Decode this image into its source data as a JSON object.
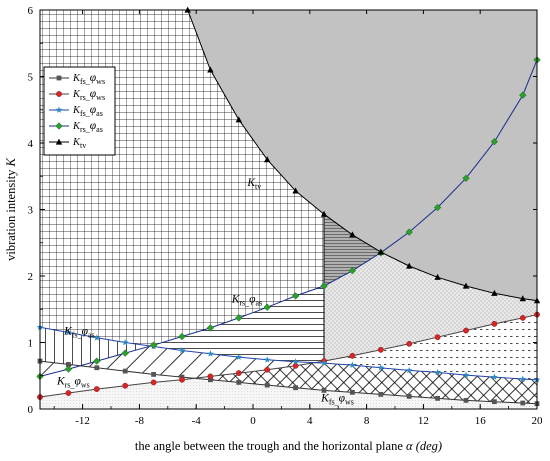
{
  "chart_data": {
    "type": "line",
    "title": "",
    "xlabel": "the angle between the trough and the horizontal plane",
    "xlabel_symbol": "α (deg)",
    "ylabel": "vibration intensity",
    "ylabel_symbol": "K",
    "xlim": [
      -15,
      20
    ],
    "ylim": [
      0,
      6
    ],
    "x_ticks": [
      -12,
      -8,
      -4,
      0,
      4,
      8,
      12,
      16,
      20
    ],
    "y_ticks": [
      0,
      1,
      2,
      3,
      4,
      5,
      6
    ],
    "legend_position": "top-left",
    "series": [
      {
        "name": "K_fs_φws",
        "label_main": "K",
        "label_sub": "fs",
        "label_phi": "φ",
        "label_phisub": "ws",
        "color": "#555555",
        "marker": "square",
        "x": [
          -15,
          -13,
          -11,
          -9,
          -7,
          -5,
          -3,
          -1,
          1,
          3,
          5,
          7,
          9,
          11,
          13,
          15,
          17,
          19,
          20
        ],
        "y": [
          0.72,
          0.67,
          0.62,
          0.57,
          0.52,
          0.48,
          0.44,
          0.4,
          0.36,
          0.32,
          0.28,
          0.25,
          0.22,
          0.19,
          0.16,
          0.13,
          0.11,
          0.09,
          0.08
        ]
      },
      {
        "name": "K_rs_φws",
        "label_main": "K",
        "label_sub": "rs",
        "label_phi": "φ",
        "label_phisub": "ws",
        "color": "#d62728",
        "marker": "circle",
        "x": [
          -15,
          -13,
          -11,
          -9,
          -7,
          -5,
          -3,
          -1,
          1,
          3,
          5,
          7,
          9,
          11,
          13,
          15,
          17,
          19,
          20
        ],
        "y": [
          0.18,
          0.24,
          0.3,
          0.35,
          0.4,
          0.44,
          0.49,
          0.54,
          0.59,
          0.65,
          0.72,
          0.8,
          0.89,
          0.98,
          1.08,
          1.18,
          1.28,
          1.37,
          1.42
        ]
      },
      {
        "name": "K_fs_φas",
        "label_main": "K",
        "label_sub": "fs",
        "label_phi": "φ",
        "label_phisub": "as",
        "color": "#2b8cc4",
        "marker": "star",
        "x": [
          -15,
          -13,
          -11,
          -9,
          -7,
          -5,
          -3,
          -1,
          1,
          3,
          5,
          7,
          9,
          11,
          13,
          15,
          17,
          19,
          20
        ],
        "y": [
          1.23,
          1.15,
          1.07,
          1.0,
          0.94,
          0.88,
          0.83,
          0.78,
          0.74,
          0.71,
          0.69,
          0.66,
          0.62,
          0.58,
          0.55,
          0.51,
          0.48,
          0.45,
          0.44
        ]
      },
      {
        "name": "K_rs_φas",
        "label_main": "K",
        "label_sub": "rs",
        "label_phi": "φ",
        "label_phisub": "as",
        "color": "#2ca02c",
        "marker": "diamond",
        "x": [
          -15,
          -13,
          -11,
          -9,
          -7,
          -5,
          -3,
          -1,
          1,
          3,
          5,
          7,
          9,
          11,
          13,
          15,
          17,
          19,
          20
        ],
        "y": [
          0.49,
          0.6,
          0.72,
          0.84,
          0.96,
          1.09,
          1.22,
          1.37,
          1.53,
          1.7,
          1.85,
          2.08,
          2.35,
          2.66,
          3.03,
          3.47,
          4.02,
          4.72,
          5.25
        ]
      },
      {
        "name": "K_tv",
        "label_main": "K",
        "label_sub": "tv",
        "color": "#000000",
        "marker": "triangle",
        "x": [
          -4.6,
          -3,
          -1,
          1,
          3,
          5,
          7,
          9,
          11,
          13,
          15,
          17,
          19,
          20
        ],
        "y": [
          6.0,
          5.1,
          4.35,
          3.75,
          3.28,
          2.93,
          2.62,
          2.36,
          2.15,
          1.98,
          1.85,
          1.74,
          1.66,
          1.63
        ]
      }
    ],
    "annotations": [
      {
        "text": "K",
        "sub": "tv",
        "x": -0.4,
        "y": 3.35
      },
      {
        "text": "K",
        "sub": "rs",
        "phi": "φ",
        "phisub": "as",
        "x": -1.5,
        "y": 1.6
      },
      {
        "text": "K",
        "sub": "fs",
        "phi": "φ",
        "phisub": "as",
        "x": -13.3,
        "y": 1.12
      },
      {
        "text": "K",
        "sub": "rs",
        "phi": "φ",
        "phisub": "ws",
        "x": -13.8,
        "y": 0.37
      },
      {
        "text": "K",
        "sub": "fs",
        "phi": "φ",
        "phisub": "ws",
        "x": 4.8,
        "y": 0.11
      }
    ]
  }
}
